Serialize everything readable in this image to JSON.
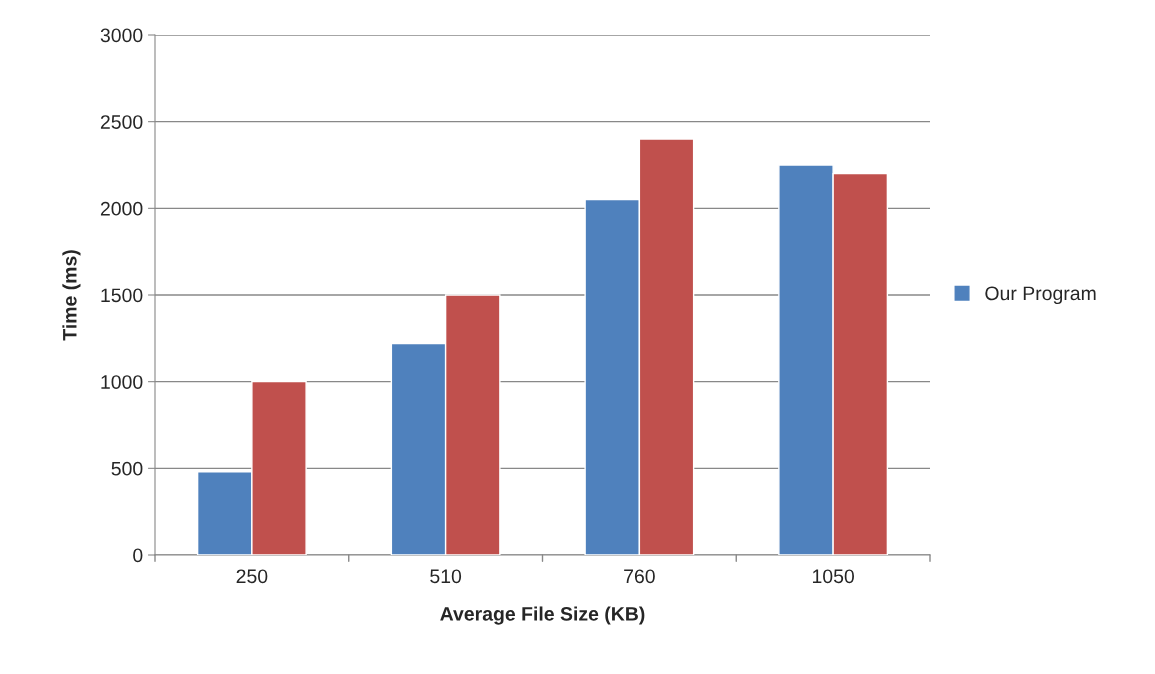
{
  "chart_data": {
    "type": "bar",
    "xlabel": "Average File Size (KB)",
    "ylabel": "Time (ms)",
    "categories": [
      "250",
      "510",
      "760",
      "1050"
    ],
    "series": [
      {
        "name": "Our Program",
        "color": "#4f81bd",
        "values": [
          480,
          1220,
          2050,
          2250
        ]
      },
      {
        "color": "#c0504d",
        "values": [
          1000,
          1500,
          2400,
          2200
        ]
      }
    ],
    "ylim": [
      0,
      3000
    ],
    "yticks": [
      0,
      500,
      1000,
      1500,
      2000,
      2500,
      3000
    ],
    "grid": "y",
    "legend": "right"
  }
}
